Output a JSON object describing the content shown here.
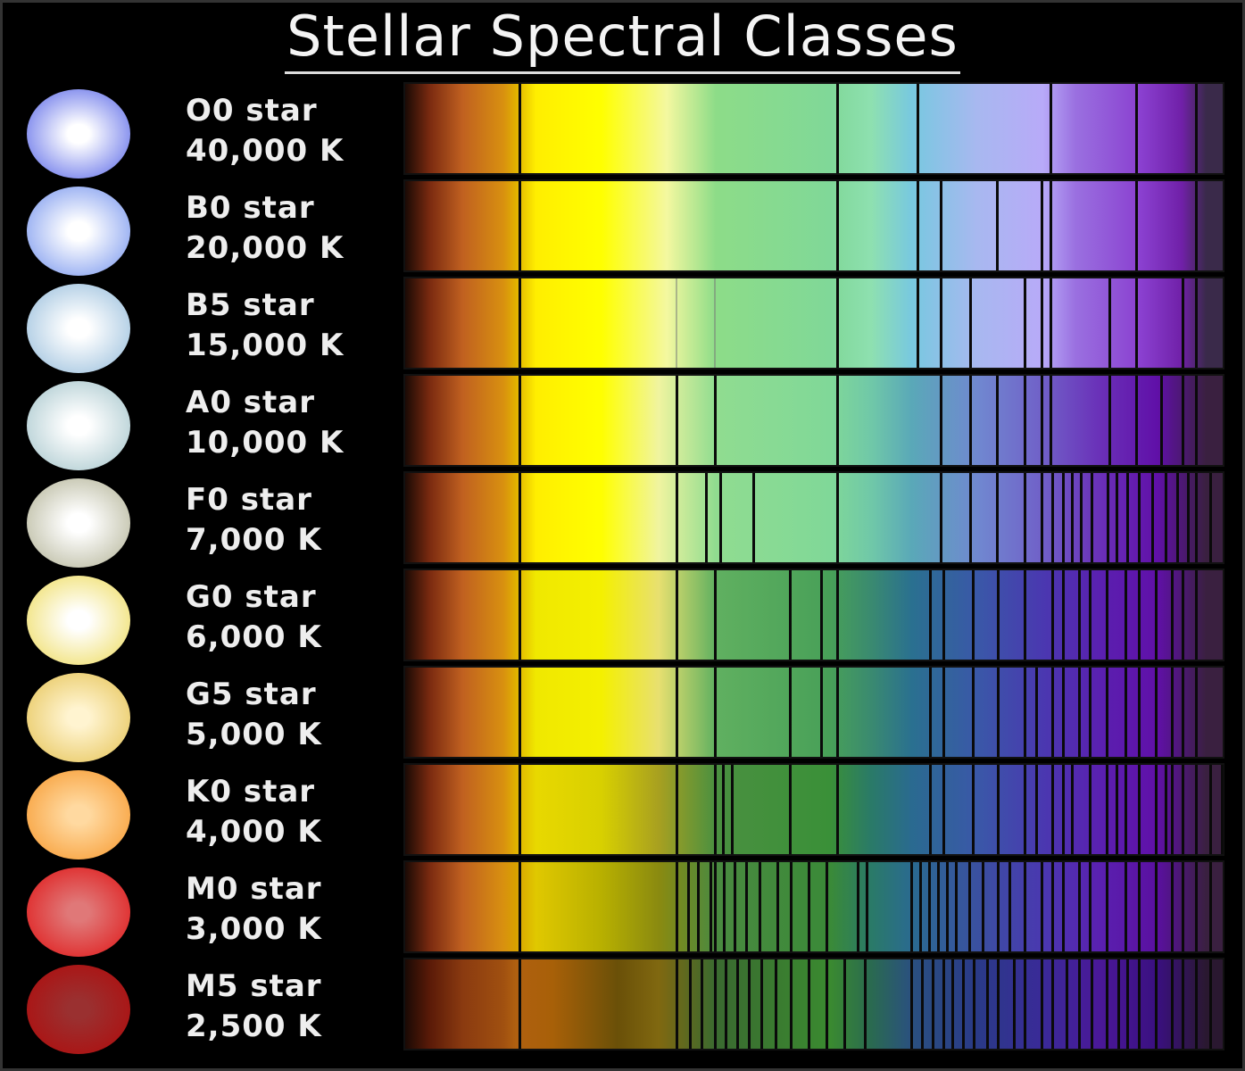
{
  "title": "Stellar Spectral Classes",
  "stars": [
    {
      "name": "O0 star",
      "temperature": "40,000 K",
      "rim": "#5a68e8",
      "core": "#ffffff"
    },
    {
      "name": "B0 star",
      "temperature": "20,000 K",
      "rim": "#7896ee",
      "core": "#ffffff"
    },
    {
      "name": "B5 star",
      "temperature": "15,000 K",
      "rim": "#98bedc",
      "core": "#ffffff"
    },
    {
      "name": "A0 star",
      "temperature": "10,000 K",
      "rim": "#a6c6cc",
      "core": "#ffffff"
    },
    {
      "name": "F0 star",
      "temperature": "7,000 K",
      "rim": "#b4b498",
      "core": "#ffffff"
    },
    {
      "name": "G0 star",
      "temperature": "6,000 K",
      "rim": "#eedc60",
      "core": "#ffffff"
    },
    {
      "name": "G5 star",
      "temperature": "5,000 K",
      "rim": "#e6c458",
      "core": "#fff4d0"
    },
    {
      "name": "K0 star",
      "temperature": "4,000 K",
      "rim": "#f79a30",
      "core": "#ffd9a0"
    },
    {
      "name": "M0 star",
      "temperature": "3,000 K",
      "rim": "#e01818",
      "core": "#e07878"
    },
    {
      "name": "M5 star",
      "temperature": "2,500 K",
      "rim": "#b00c0c",
      "core": "#9a3030"
    }
  ]
}
